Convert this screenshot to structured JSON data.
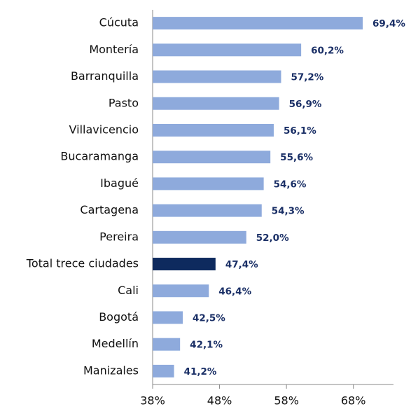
{
  "chart_data": {
    "type": "barh",
    "categories": [
      "Cúcuta",
      "Montería",
      "Barranquilla",
      "Pasto",
      "Villavicencio",
      "Bucaramanga",
      "Ibagué",
      "Cartagena",
      "Pereira",
      "Total trece ciudades",
      "Cali",
      "Bogotá",
      "Medellín",
      "Manizales"
    ],
    "values": [
      69.4,
      60.2,
      57.2,
      56.9,
      56.1,
      55.6,
      54.6,
      54.3,
      52.0,
      47.4,
      46.4,
      42.5,
      42.1,
      41.2
    ],
    "value_labels": [
      "69,4%",
      "60,2%",
      "57,2%",
      "56,9%",
      "56,1%",
      "55,6%",
      "54,6%",
      "54,3%",
      "52,0%",
      "47,4%",
      "46,4%",
      "42,5%",
      "42,1%",
      "41,2%"
    ],
    "colors": [
      "#8eaadc",
      "#8eaadc",
      "#8eaadc",
      "#8eaadc",
      "#8eaadc",
      "#8eaadc",
      "#8eaadc",
      "#8eaadc",
      "#8eaadc",
      "#0e2a5e",
      "#8eaadc",
      "#8eaadc",
      "#8eaadc",
      "#8eaadc"
    ],
    "xlim": [
      38,
      74
    ],
    "xticks": [
      {
        "value": 38,
        "label": "38%"
      },
      {
        "value": 48,
        "label": "48%"
      },
      {
        "value": 58,
        "label": "58%"
      },
      {
        "value": 68,
        "label": "68%"
      }
    ]
  }
}
